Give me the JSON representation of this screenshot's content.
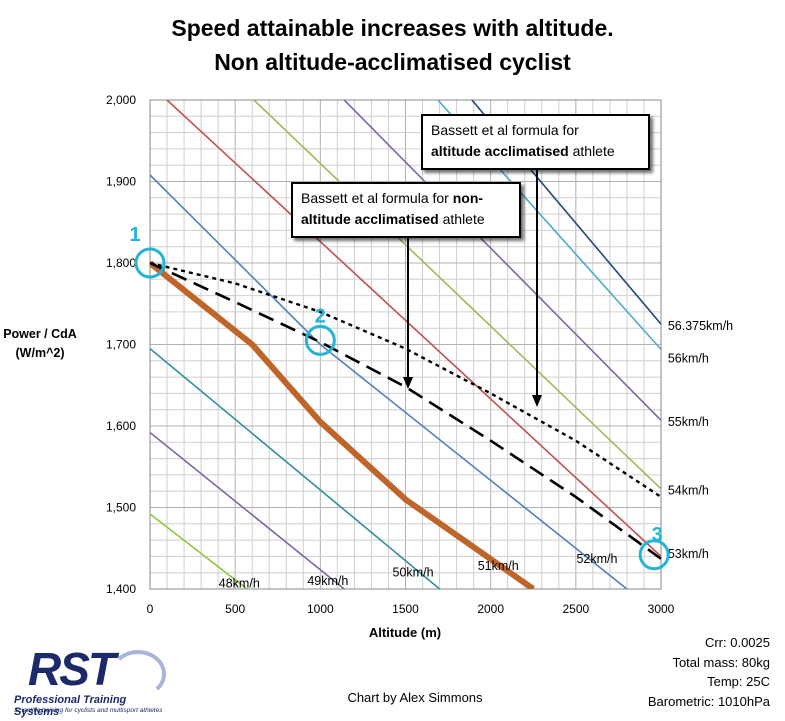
{
  "title": {
    "line1": "Speed attainable increases with altitude.",
    "line2": "Non altitude-acclimatised cyclist"
  },
  "chart_data": {
    "type": "line",
    "xlabel": "Altitude (m)",
    "ylabel": "Power / CdA (W/m^2)",
    "xlim": [
      0,
      3000
    ],
    "ylim": [
      1400,
      2000
    ],
    "x_ticks": [
      0,
      500,
      1000,
      1500,
      2000,
      2500,
      3000
    ],
    "x_tick_labels": [
      "0",
      "500",
      "1000",
      "1500",
      "2000",
      "2500",
      "3000"
    ],
    "y_ticks": [
      1400,
      1500,
      1600,
      1700,
      1800,
      1900,
      2000
    ],
    "y_tick_labels": [
      "1,400",
      "1,500",
      "1,600",
      "1,700",
      "1,800",
      "1,900",
      "2,000"
    ],
    "grid": true,
    "iso_speed_lines": [
      {
        "name": "48km/h",
        "color": "#8dc63f",
        "label_at": {
          "x": 580,
          "y": 1407
        },
        "points": [
          [
            0,
            1492
          ],
          [
            570,
            1400
          ]
        ]
      },
      {
        "name": "49km/h",
        "color": "#8064a2",
        "label_at": {
          "x": 1100,
          "y": 1410
        },
        "points": [
          [
            0,
            1592
          ],
          [
            1140,
            1400
          ]
        ]
      },
      {
        "name": "50km/h",
        "color": "#2f8f9d",
        "label_at": {
          "x": 1600,
          "y": 1420
        },
        "points": [
          [
            0,
            1695
          ],
          [
            1700,
            1400
          ]
        ]
      },
      {
        "name": "51km/h",
        "color": "#c0652a",
        "width": 6,
        "label_at": {
          "x": 2100,
          "y": 1428
        },
        "points": [
          [
            0,
            1800
          ],
          [
            600,
            1700
          ],
          [
            1000,
            1605
          ],
          [
            1500,
            1510
          ],
          [
            2250,
            1400
          ]
        ]
      },
      {
        "name": "52km/h",
        "color": "#4f81bd",
        "label_at": {
          "x": 2680,
          "y": 1437
        },
        "points": [
          [
            0,
            1908
          ],
          [
            1000,
            1700
          ],
          [
            2800,
            1400
          ]
        ]
      },
      {
        "name": "53km/h",
        "color": "#c0504d",
        "label_at": {
          "x": 3040,
          "y": 1443
        },
        "points": [
          [
            100,
            2000
          ],
          [
            3000,
            1440
          ]
        ]
      },
      {
        "name": "54km/h",
        "color": "#9bbb59",
        "label_at": {
          "x": 3040,
          "y": 1521
        },
        "points": [
          [
            610,
            2000
          ],
          [
            3000,
            1523
          ]
        ]
      },
      {
        "name": "55km/h",
        "color": "#8064a2",
        "label_at": {
          "x": 3040,
          "y": 1605
        },
        "points": [
          [
            1140,
            2000
          ],
          [
            3000,
            1607
          ]
        ]
      },
      {
        "name": "56km/h",
        "color": "#4bacc6",
        "label_at": {
          "x": 3040,
          "y": 1683
        },
        "points": [
          [
            1690,
            2000
          ],
          [
            3000,
            1694
          ]
        ]
      },
      {
        "name": "56.375km/h",
        "color": "#1f497d",
        "label_at": {
          "x": 3040,
          "y": 1723
        },
        "points": [
          [
            1890,
            2000
          ],
          [
            3000,
            1725
          ]
        ]
      }
    ],
    "series": [
      {
        "name": "Bassett et al formula for non-altitude acclimatised athlete",
        "style": "dashed",
        "x": [
          0,
          500,
          1000,
          1500,
          2000,
          2500,
          3000
        ],
        "y": [
          1800,
          1752,
          1703,
          1648,
          1582,
          1513,
          1437
        ]
      },
      {
        "name": "Bassett et al formula for altitude acclimatised athlete",
        "style": "dotted",
        "x": [
          0,
          500,
          1000,
          1500,
          2000,
          2500,
          3000
        ],
        "y": [
          1800,
          1775,
          1740,
          1695,
          1640,
          1582,
          1513
        ]
      }
    ],
    "markers": [
      {
        "label": "1",
        "x": 0,
        "y": 1800
      },
      {
        "label": "2",
        "x": 1000,
        "y": 1705
      },
      {
        "label": "3",
        "x": 2960,
        "y": 1442
      }
    ],
    "annotations": [
      {
        "parts": [
          {
            "text": "Bassett et al formula for ",
            "bold": false
          },
          {
            "text": "non-",
            "bold": true
          },
          {
            "text": "altitude acclimatised",
            "bold": true
          },
          {
            "text": " athlete",
            "bold": false
          }
        ]
      },
      {
        "parts": [
          {
            "text": "Bassett et al formula for",
            "bold": false
          },
          {
            "text": "altitude acclimatised",
            "bold": true
          },
          {
            "text": " athlete",
            "bold": false
          }
        ]
      }
    ]
  },
  "params": {
    "crr": "Crr: 0.0025",
    "mass": "Total mass: 80kg",
    "temp": "Temp: 25C",
    "baro": "Barometric: 1010hPa"
  },
  "credit": "Chart by Alex Simmons",
  "logo": {
    "mark": "RST",
    "name": "Professional Training Systems",
    "tagline": "Scientific training for cyclists and multisport athletes"
  }
}
